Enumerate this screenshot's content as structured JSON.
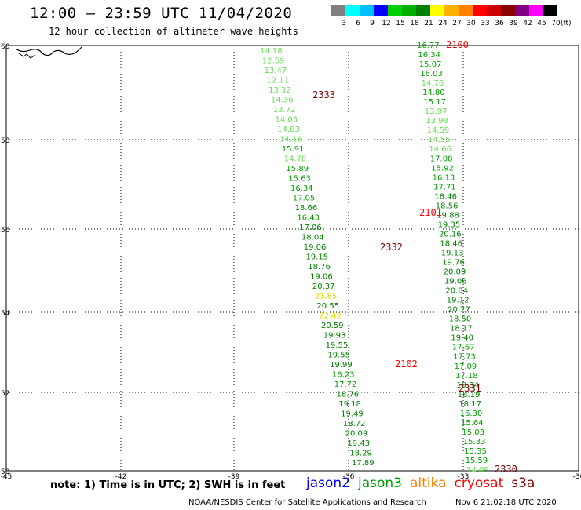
{
  "title": "12:00 — 23:59 UTC 11/04/2020",
  "subtitle": "12 hour collection of altimeter wave heights",
  "colorbar": {
    "labels": [
      "3",
      "6",
      "9",
      "12",
      "15",
      "18",
      "21",
      "24",
      "27",
      "30",
      "33",
      "36",
      "39",
      "42",
      "45",
      "70"
    ],
    "unit": "(ft)",
    "colors": [
      "#808080",
      "#00ffff",
      "#00bfff",
      "#0000ff",
      "#00d000",
      "#00b000",
      "#008000",
      "#ffff00",
      "#ffb000",
      "#ff8000",
      "#ff0000",
      "#cc0000",
      "#8b0000",
      "#800080",
      "#ff00ff",
      "#000000"
    ]
  },
  "axes": {
    "lon_labels": [
      "-45",
      "-42",
      "-39",
      "-36",
      "-33",
      "-30"
    ],
    "lat_labels": [
      "60",
      "58",
      "56",
      "54",
      "52",
      "50"
    ]
  },
  "tracks": {
    "left": [
      {
        "v": "14.18",
        "c": "#66dd55"
      },
      {
        "v": "12.59",
        "c": "#66dd55"
      },
      {
        "v": "13.47",
        "c": "#66dd55"
      },
      {
        "v": "12.11",
        "c": "#66dd55"
      },
      {
        "v": "13.32",
        "c": "#66dd55"
      },
      {
        "v": "14.36",
        "c": "#66dd55"
      },
      {
        "v": "13.72",
        "c": "#66dd55"
      },
      {
        "v": "14.05",
        "c": "#66dd55"
      },
      {
        "v": "14.83",
        "c": "#66dd55"
      },
      {
        "v": "14.18",
        "c": "#66dd55"
      },
      {
        "v": "15.91",
        "c": "#00a000"
      },
      {
        "v": "14.78",
        "c": "#66dd55"
      },
      {
        "v": "15.89",
        "c": "#00a000"
      },
      {
        "v": "15.63",
        "c": "#00a000"
      },
      {
        "v": "16.34",
        "c": "#00a000"
      },
      {
        "v": "17.05",
        "c": "#00a000"
      },
      {
        "v": "18.66",
        "c": "#008000"
      },
      {
        "v": "16.43",
        "c": "#00a000"
      },
      {
        "v": "17.06",
        "c": "#008000"
      },
      {
        "v": "18.04",
        "c": "#008000"
      },
      {
        "v": "19.06",
        "c": "#008000"
      },
      {
        "v": "19.15",
        "c": "#008000"
      },
      {
        "v": "18.76",
        "c": "#008000"
      },
      {
        "v": "19.06",
        "c": "#008000"
      },
      {
        "v": "20.37",
        "c": "#008000"
      },
      {
        "v": "21.85",
        "c": "#dddd00"
      },
      {
        "v": "20.55",
        "c": "#008000"
      },
      {
        "v": "22.42",
        "c": "#dddd00"
      },
      {
        "v": "20.59",
        "c": "#008000"
      },
      {
        "v": "19.93",
        "c": "#008000"
      },
      {
        "v": "19.55",
        "c": "#008000"
      },
      {
        "v": "19.55",
        "c": "#008000"
      },
      {
        "v": "19.99",
        "c": "#008000"
      },
      {
        "v": "16.23",
        "c": "#00a000"
      },
      {
        "v": "17.72",
        "c": "#00a000"
      },
      {
        "v": "18.76",
        "c": "#008000"
      },
      {
        "v": "19.18",
        "c": "#008000"
      },
      {
        "v": "19.49",
        "c": "#008000"
      },
      {
        "v": "18.72",
        "c": "#008000"
      },
      {
        "v": "20.09",
        "c": "#008000"
      },
      {
        "v": "19.43",
        "c": "#008000"
      },
      {
        "v": "18.29",
        "c": "#008000"
      },
      {
        "v": "17.89",
        "c": "#008000"
      }
    ],
    "right": [
      {
        "v": "16.77",
        "c": "#00a000"
      },
      {
        "v": "16.34",
        "c": "#00a000"
      },
      {
        "v": "15.07",
        "c": "#00a000"
      },
      {
        "v": "16.03",
        "c": "#00a000"
      },
      {
        "v": "14.76",
        "c": "#66dd55"
      },
      {
        "v": "14.80",
        "c": "#00a000"
      },
      {
        "v": "15.17",
        "c": "#00a000"
      },
      {
        "v": "13.97",
        "c": "#66dd55"
      },
      {
        "v": "13.98",
        "c": "#66dd55"
      },
      {
        "v": "14.59",
        "c": "#66dd55"
      },
      {
        "v": "14.55",
        "c": "#66dd55"
      },
      {
        "v": "14.66",
        "c": "#66dd55"
      },
      {
        "v": "17.08",
        "c": "#00a000"
      },
      {
        "v": "15.92",
        "c": "#00a000"
      },
      {
        "v": "16.13",
        "c": "#00a000"
      },
      {
        "v": "17.71",
        "c": "#00a000"
      },
      {
        "v": "18.46",
        "c": "#008000"
      },
      {
        "v": "18.56",
        "c": "#008000"
      },
      {
        "v": "19.88",
        "c": "#008000"
      },
      {
        "v": "19.35",
        "c": "#008000"
      },
      {
        "v": "20.16",
        "c": "#008000"
      },
      {
        "v": "18.46",
        "c": "#008000"
      },
      {
        "v": "19.13",
        "c": "#008000"
      },
      {
        "v": "19.76",
        "c": "#008000"
      },
      {
        "v": "20.09",
        "c": "#008000"
      },
      {
        "v": "19.06",
        "c": "#008000"
      },
      {
        "v": "20.84",
        "c": "#008000"
      },
      {
        "v": "19.12",
        "c": "#008000"
      },
      {
        "v": "20.27",
        "c": "#008000"
      },
      {
        "v": "18.50",
        "c": "#008000"
      },
      {
        "v": "18.17",
        "c": "#008000"
      },
      {
        "v": "19.40",
        "c": "#008000"
      },
      {
        "v": "17.67",
        "c": "#00a000"
      },
      {
        "v": "17.73",
        "c": "#00a000"
      },
      {
        "v": "17.09",
        "c": "#00a000"
      },
      {
        "v": "17.18",
        "c": "#00a000"
      },
      {
        "v": "19.34",
        "c": "#008000"
      },
      {
        "v": "18.19",
        "c": "#008000"
      },
      {
        "v": "18.17",
        "c": "#008000"
      },
      {
        "v": "16.30",
        "c": "#00a000"
      },
      {
        "v": "15.64",
        "c": "#00a000"
      },
      {
        "v": "15.03",
        "c": "#00a000"
      },
      {
        "v": "15.33",
        "c": "#00a000"
      },
      {
        "v": "15.35",
        "c": "#00a000"
      },
      {
        "v": "15.59",
        "c": "#00a000"
      },
      {
        "v": "14.09",
        "c": "#66dd55"
      }
    ]
  },
  "time_labels": [
    {
      "t": "2100",
      "c": "#ff0000"
    },
    {
      "t": "2333",
      "c": "#800000"
    },
    {
      "t": "2101",
      "c": "#ff0000"
    },
    {
      "t": "2332",
      "c": "#800000"
    },
    {
      "t": "2102",
      "c": "#ff0000"
    },
    {
      "t": "2331",
      "c": "#800000"
    },
    {
      "t": "2330",
      "c": "#800000"
    }
  ],
  "note": "note: 1) Time is in UTC; 2) SWH is in feet",
  "satellites": [
    {
      "name": "jason2",
      "color": "#0000ff"
    },
    {
      "name": "jason3",
      "color": "#00a000"
    },
    {
      "name": "altika",
      "color": "#ff8000"
    },
    {
      "name": "cryosat",
      "color": "#ff0000"
    },
    {
      "name": "s3a",
      "color": "#800000"
    }
  ],
  "credit": "NOAA/NESDIS Center for Satellite Applications and Research",
  "credit_date": "Nov  6 21:02:18 UTC 2020"
}
